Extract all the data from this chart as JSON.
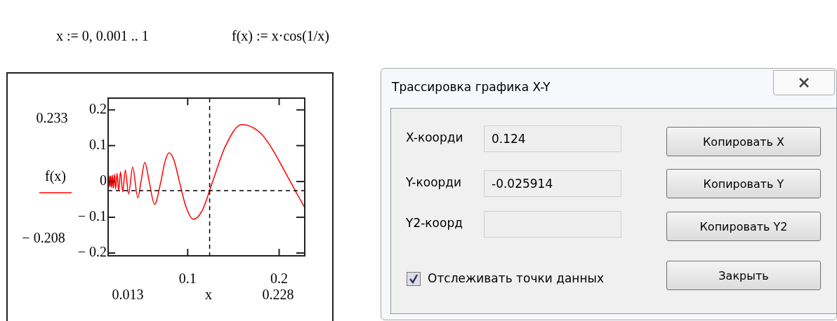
{
  "chart_data": {
    "type": "line",
    "xlabel": "x",
    "ylabel": "f(x)",
    "x": [
      0.013,
      0.0133,
      0.0138,
      0.0145,
      0.0152,
      0.0159,
      0.0168,
      0.0177,
      0.0187,
      0.0199,
      0.0212,
      0.0227,
      0.0245,
      0.0265,
      0.0289,
      0.0318,
      0.0354,
      0.0398,
      0.0455,
      0.049,
      0.0531,
      0.0579,
      0.0637,
      0.0707,
      0.0749,
      0.0796,
      0.0849,
      0.0909,
      0.0979,
      0.1061,
      0.1158,
      0.1273,
      0.1415,
      0.159,
      0.1819,
      0.2122,
      0.22,
      0.228
    ],
    "series": [
      {
        "color": "#ff0000",
        "values": [
          0.001,
          0.013,
          -0.014,
          0.015,
          -0.015,
          0.016,
          -0.017,
          0.018,
          -0.019,
          0.02,
          -0.021,
          0.023,
          -0.025,
          0.027,
          -0.029,
          0.032,
          -0.035,
          0.04,
          -0.046,
          0,
          0.053,
          0,
          -0.064,
          0,
          0.053,
          0.08,
          0.06,
          0,
          -0.069,
          -0.106,
          -0.082,
          0,
          0.1,
          0.159,
          0.129,
          0,
          -0.037,
          -0.073
        ]
      }
    ],
    "xlim": [
      0.013,
      0.228
    ],
    "ylim": [
      -0.208,
      0.233
    ],
    "xticks": [
      0.1,
      0.2
    ],
    "yticks": [
      -0.2,
      -0.1,
      0,
      0.1,
      0.2
    ],
    "grid": false,
    "legend": false,
    "ref_lines": [
      {
        "axis": "x",
        "value": 0.124,
        "color": "#000000",
        "line_style": "dashed"
      },
      {
        "axis": "y",
        "value": -0.025914,
        "color": "#000000",
        "line_style": "dashed"
      }
    ],
    "annotations": [
      "x := 0, 0.001 .. 1",
      "f(x) := x·cos(1/x)",
      "Трассировка графика X-Y",
      "X-коорди",
      "Y-коорди",
      "Y2-коорд",
      "Копировать X",
      "Копировать Y",
      "Копировать Y2",
      "Отслеживать точки данных",
      "Закрыть",
      "0.233",
      "− 0.208",
      "0.013",
      "0.228",
      "0.124",
      "-0.025914"
    ]
  }
}
